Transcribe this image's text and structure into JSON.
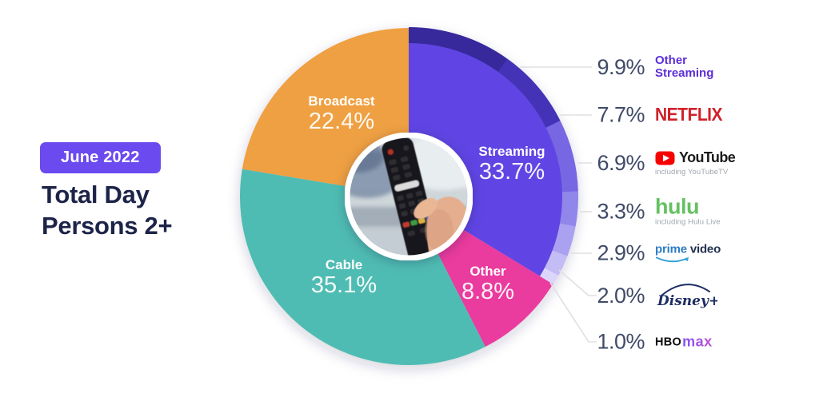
{
  "header": {
    "badge": "June 2022",
    "title_line1": "Total Day",
    "title_line2": "Persons 2+"
  },
  "chart_data": {
    "type": "pie",
    "title": "Total Day Persons 2+",
    "period": "June 2022",
    "legend_position": "right",
    "donut_center": "photo-of-hand-holding-tv-remote",
    "start_angle_deg_from_north": 0,
    "direction": "clockwise",
    "slices": [
      {
        "label": "Streaming",
        "value": 33.7,
        "display": "33.7%",
        "color": "#6045e4"
      },
      {
        "label": "Other",
        "value": 8.8,
        "display": "8.8%",
        "color": "#ea3b9e"
      },
      {
        "label": "Cable",
        "value": 35.1,
        "display": "35.1%",
        "color": "#4fbcb3"
      },
      {
        "label": "Broadcast",
        "value": 22.4,
        "display": "22.4%",
        "color": "#efa042"
      }
    ],
    "streaming_breakdown": [
      {
        "label": "Other Streaming",
        "value": 9.9,
        "display": "9.9%",
        "rim_color": "#37299c"
      },
      {
        "label": "Netflix",
        "value": 7.7,
        "display": "7.7%",
        "rim_color": "#4433b6"
      },
      {
        "label": "YouTube",
        "value": 6.9,
        "display": "6.9%",
        "rim_color": "#7767e2",
        "note": "including YouTubeTV"
      },
      {
        "label": "Hulu",
        "value": 3.3,
        "display": "3.3%",
        "rim_color": "#9186ea",
        "note": "including Hulu Live"
      },
      {
        "label": "Prime Video",
        "value": 2.9,
        "display": "2.9%",
        "rim_color": "#aaa1f0"
      },
      {
        "label": "Disney+",
        "value": 2.0,
        "display": "2.0%",
        "rim_color": "#c3bcf5"
      },
      {
        "label": "HBO Max",
        "value": 1.0,
        "display": "1.0%",
        "rim_color": "#dcd7fa"
      }
    ]
  },
  "breakdown_panel": {
    "rows": [
      {
        "pct": "9.9%",
        "brand": "Other Streaming",
        "brand_lines": [
          "Other",
          "Streaming"
        ]
      },
      {
        "pct": "7.7%",
        "brand": "NETFLIX"
      },
      {
        "pct": "6.9%",
        "brand": "YouTube",
        "note": "including YouTubeTV"
      },
      {
        "pct": "3.3%",
        "brand": "hulu",
        "note": "including Hulu Live"
      },
      {
        "pct": "2.9%",
        "brand": "prime video",
        "brand_parts": {
          "prime": "prime",
          "video": "video"
        }
      },
      {
        "pct": "2.0%",
        "brand": "Disney+"
      },
      {
        "pct": "1.0%",
        "brand": "HBO Max",
        "brand_parts": {
          "hbo": "HBO",
          "max": "max"
        }
      }
    ]
  },
  "colors": {
    "badge_bg": "#6b4af0",
    "title_text": "#1d2448",
    "legend_pct_text": "#404b68",
    "leader_line": "#e0e0e3",
    "other_streaming_text": "#5b2ed6",
    "netflix_red": "#d0212a",
    "youtube_red": "#ff0000",
    "hulu_green": "#65c161",
    "prime_blue": "#2e7cc3",
    "disney_navy": "#1d2d63",
    "hbo_black": "#0b0b0b",
    "max_purple": "#8e51e4"
  }
}
